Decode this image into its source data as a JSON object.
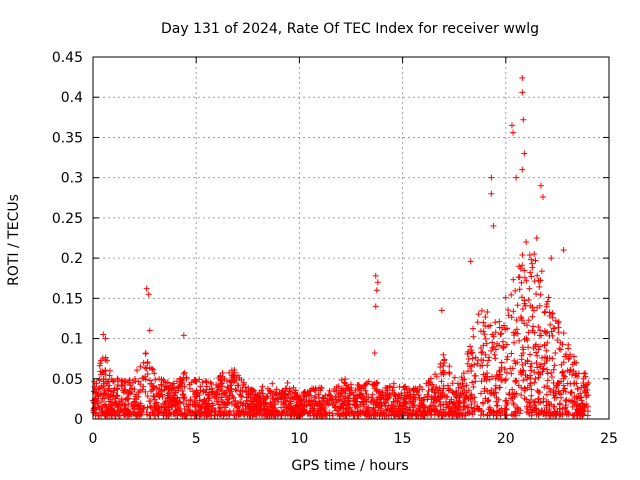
{
  "chart_data": {
    "type": "scatter",
    "title": "Day 131 of 2024, Rate Of TEC Index for receiver wwlg",
    "xlabel": "GPS time / hours",
    "ylabel": "ROTI / TECUs",
    "xlim": [
      0,
      25
    ],
    "ylim": [
      0,
      0.45
    ],
    "xticks": [
      "0",
      "5",
      "10",
      "15",
      "20",
      "25"
    ],
    "yticks": [
      "0",
      "0.05",
      "0.1",
      "0.15",
      "0.2",
      "0.25",
      "0.3",
      "0.35",
      "0.4",
      "0.45"
    ],
    "grid": true,
    "marker": "+",
    "color": "#ff0000",
    "notable_points": [
      {
        "x": 0.5,
        "y": 0.105
      },
      {
        "x": 0.6,
        "y": 0.1
      },
      {
        "x": 2.6,
        "y": 0.162
      },
      {
        "x": 2.7,
        "y": 0.155
      },
      {
        "x": 2.75,
        "y": 0.11
      },
      {
        "x": 4.4,
        "y": 0.104
      },
      {
        "x": 13.7,
        "y": 0.178
      },
      {
        "x": 13.8,
        "y": 0.17
      },
      {
        "x": 13.75,
        "y": 0.16
      },
      {
        "x": 13.7,
        "y": 0.14
      },
      {
        "x": 13.65,
        "y": 0.082
      },
      {
        "x": 16.9,
        "y": 0.135
      },
      {
        "x": 18.3,
        "y": 0.196
      },
      {
        "x": 19.3,
        "y": 0.3
      },
      {
        "x": 19.3,
        "y": 0.28
      },
      {
        "x": 19.4,
        "y": 0.24
      },
      {
        "x": 20.3,
        "y": 0.365
      },
      {
        "x": 20.35,
        "y": 0.356
      },
      {
        "x": 20.8,
        "y": 0.424
      },
      {
        "x": 20.8,
        "y": 0.406
      },
      {
        "x": 20.85,
        "y": 0.372
      },
      {
        "x": 20.9,
        "y": 0.33
      },
      {
        "x": 20.8,
        "y": 0.31
      },
      {
        "x": 20.5,
        "y": 0.3
      },
      {
        "x": 21.7,
        "y": 0.29
      },
      {
        "x": 21.8,
        "y": 0.276
      },
      {
        "x": 21.5,
        "y": 0.225
      },
      {
        "x": 22.2,
        "y": 0.2
      },
      {
        "x": 22.8,
        "y": 0.21
      }
    ],
    "envelope": {
      "x": [
        0,
        0.5,
        1,
        1.5,
        2,
        2.5,
        3,
        3.5,
        4,
        4.5,
        5,
        5.5,
        6,
        6.5,
        7,
        7.5,
        8,
        8.5,
        9,
        9.5,
        10,
        10.5,
        11,
        11.5,
        12,
        12.5,
        13,
        13.5,
        14,
        14.5,
        15,
        15.5,
        16,
        16.5,
        17,
        17.5,
        18,
        18.5,
        19,
        19.5,
        20,
        20.5,
        21,
        21.5,
        22,
        22.5,
        23,
        23.5,
        24
      ],
      "y": [
        0.04,
        0.08,
        0.05,
        0.045,
        0.045,
        0.09,
        0.05,
        0.045,
        0.045,
        0.06,
        0.05,
        0.045,
        0.045,
        0.06,
        0.06,
        0.035,
        0.03,
        0.05,
        0.03,
        0.045,
        0.025,
        0.035,
        0.035,
        0.035,
        0.05,
        0.04,
        0.04,
        0.045,
        0.04,
        0.04,
        0.04,
        0.035,
        0.04,
        0.05,
        0.08,
        0.05,
        0.06,
        0.12,
        0.14,
        0.12,
        0.15,
        0.18,
        0.22,
        0.2,
        0.16,
        0.12,
        0.1,
        0.06,
        0.05
      ]
    }
  }
}
